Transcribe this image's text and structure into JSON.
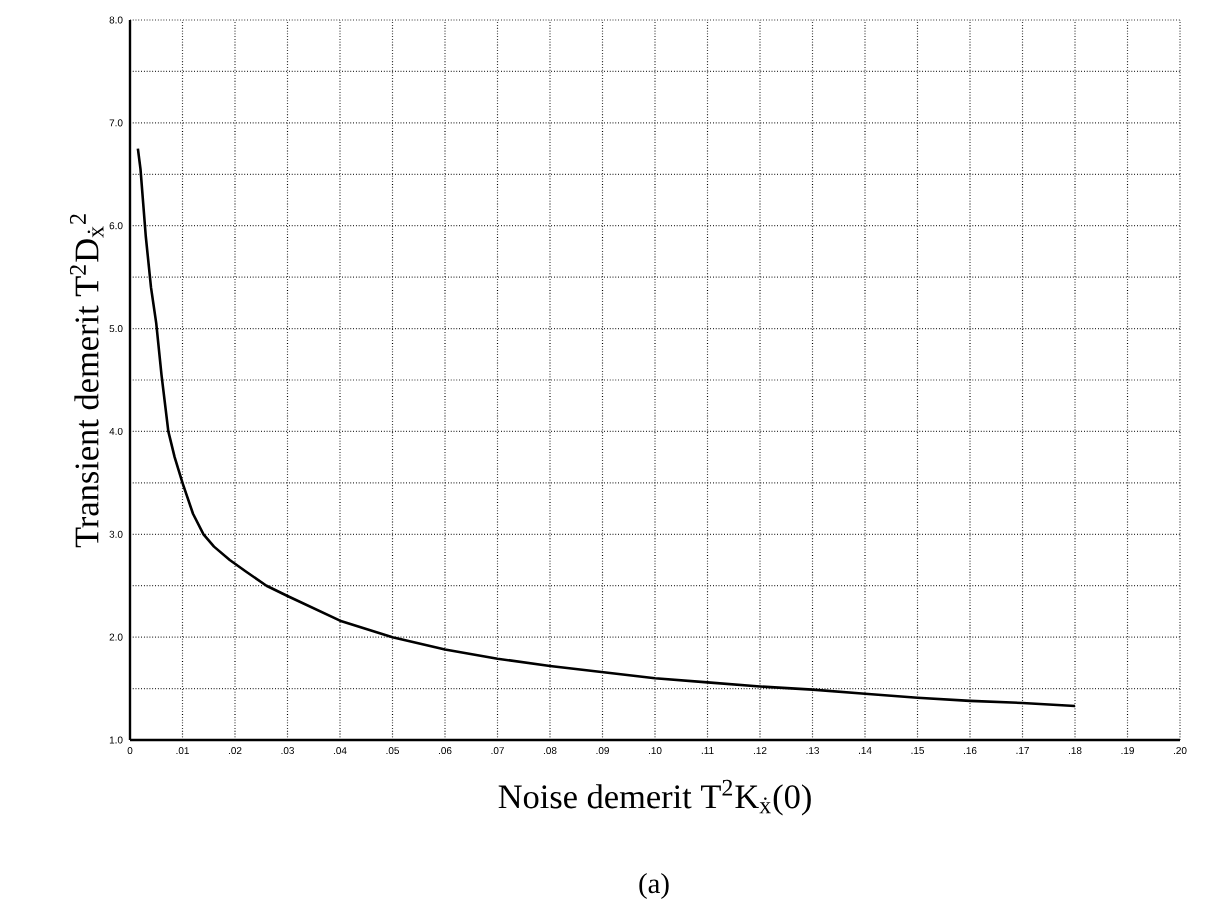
{
  "chart_data": {
    "type": "line",
    "xlabel": "Noise demerit T$^{2}$K$_{ẋ}$(0)",
    "ylabel": "Transient demerit T$^{2}$D$_{ẋ}$$^{2}$",
    "annotations": [
      "(a)"
    ],
    "x": [
      0.0015,
      0.002,
      0.003,
      0.004,
      0.005,
      0.006,
      0.0073,
      0.0085,
      0.01,
      0.012,
      0.014,
      0.016,
      0.019,
      0.022,
      0.026,
      0.03,
      0.04,
      0.05,
      0.06,
      0.07,
      0.08,
      0.09,
      0.1,
      0.11,
      0.12,
      0.13,
      0.14,
      0.15,
      0.16,
      0.17,
      0.18
    ],
    "series": [
      {
        "color": "#000000",
        "values": [
          6.75,
          6.55,
          5.9,
          5.4,
          5.05,
          4.55,
          4.0,
          3.75,
          3.5,
          3.2,
          3.0,
          2.88,
          2.75,
          2.64,
          2.5,
          2.4,
          2.16,
          2.0,
          1.88,
          1.79,
          1.72,
          1.66,
          1.6,
          1.56,
          1.52,
          1.49,
          1.45,
          1.41,
          1.38,
          1.36,
          1.33
        ]
      }
    ],
    "xlim": [
      0,
      0.2
    ],
    "ylim": [
      1,
      8
    ],
    "xticks": [
      0,
      {
        "value": 0.01,
        "label": ".01"
      },
      {
        "value": 0.02,
        "label": ".02"
      },
      {
        "value": 0.03,
        "label": ".03"
      },
      {
        "value": 0.04,
        "label": ".04"
      },
      {
        "value": 0.05,
        "label": ".05"
      },
      {
        "value": 0.06,
        "label": ".06"
      },
      {
        "value": 0.07,
        "label": ".07"
      },
      {
        "value": 0.08,
        "label": ".08"
      },
      {
        "value": 0.09,
        "label": ".09"
      },
      {
        "value": 0.1,
        "label": ".10"
      },
      {
        "value": 0.11,
        "label": ".11"
      },
      {
        "value": 0.12,
        "label": ".12"
      },
      {
        "value": 0.13,
        "label": ".13"
      },
      {
        "value": 0.14,
        "label": ".14"
      },
      {
        "value": 0.15,
        "label": ".15"
      },
      {
        "value": 0.16,
        "label": ".16"
      },
      {
        "value": 0.17,
        "label": ".17"
      },
      {
        "value": 0.18,
        "label": ".18"
      },
      {
        "value": 0.19,
        "label": ".19"
      },
      {
        "value": 0.2,
        "label": ".20"
      }
    ],
    "yticks": [
      {
        "value": 1,
        "label": "1.0"
      },
      {
        "value": 1.5,
        "label": null
      },
      {
        "value": 2,
        "label": "2.0"
      },
      {
        "value": 2.5,
        "label": null
      },
      {
        "value": 3,
        "label": "3.0"
      },
      {
        "value": 3.5,
        "label": null
      },
      {
        "value": 4,
        "label": "4.0"
      },
      {
        "value": 4.5,
        "label": null
      },
      {
        "value": 5,
        "label": "5.0"
      },
      {
        "value": 5.5,
        "label": null
      },
      {
        "value": 6,
        "label": "6.0"
      },
      {
        "value": 6.5,
        "label": null
      },
      {
        "value": 7,
        "label": "7.0"
      },
      {
        "value": 7.5,
        "label": null
      },
      {
        "value": 8,
        "label": "8.0"
      }
    ],
    "grid": true,
    "marker": "none",
    "line_style": "solid"
  }
}
